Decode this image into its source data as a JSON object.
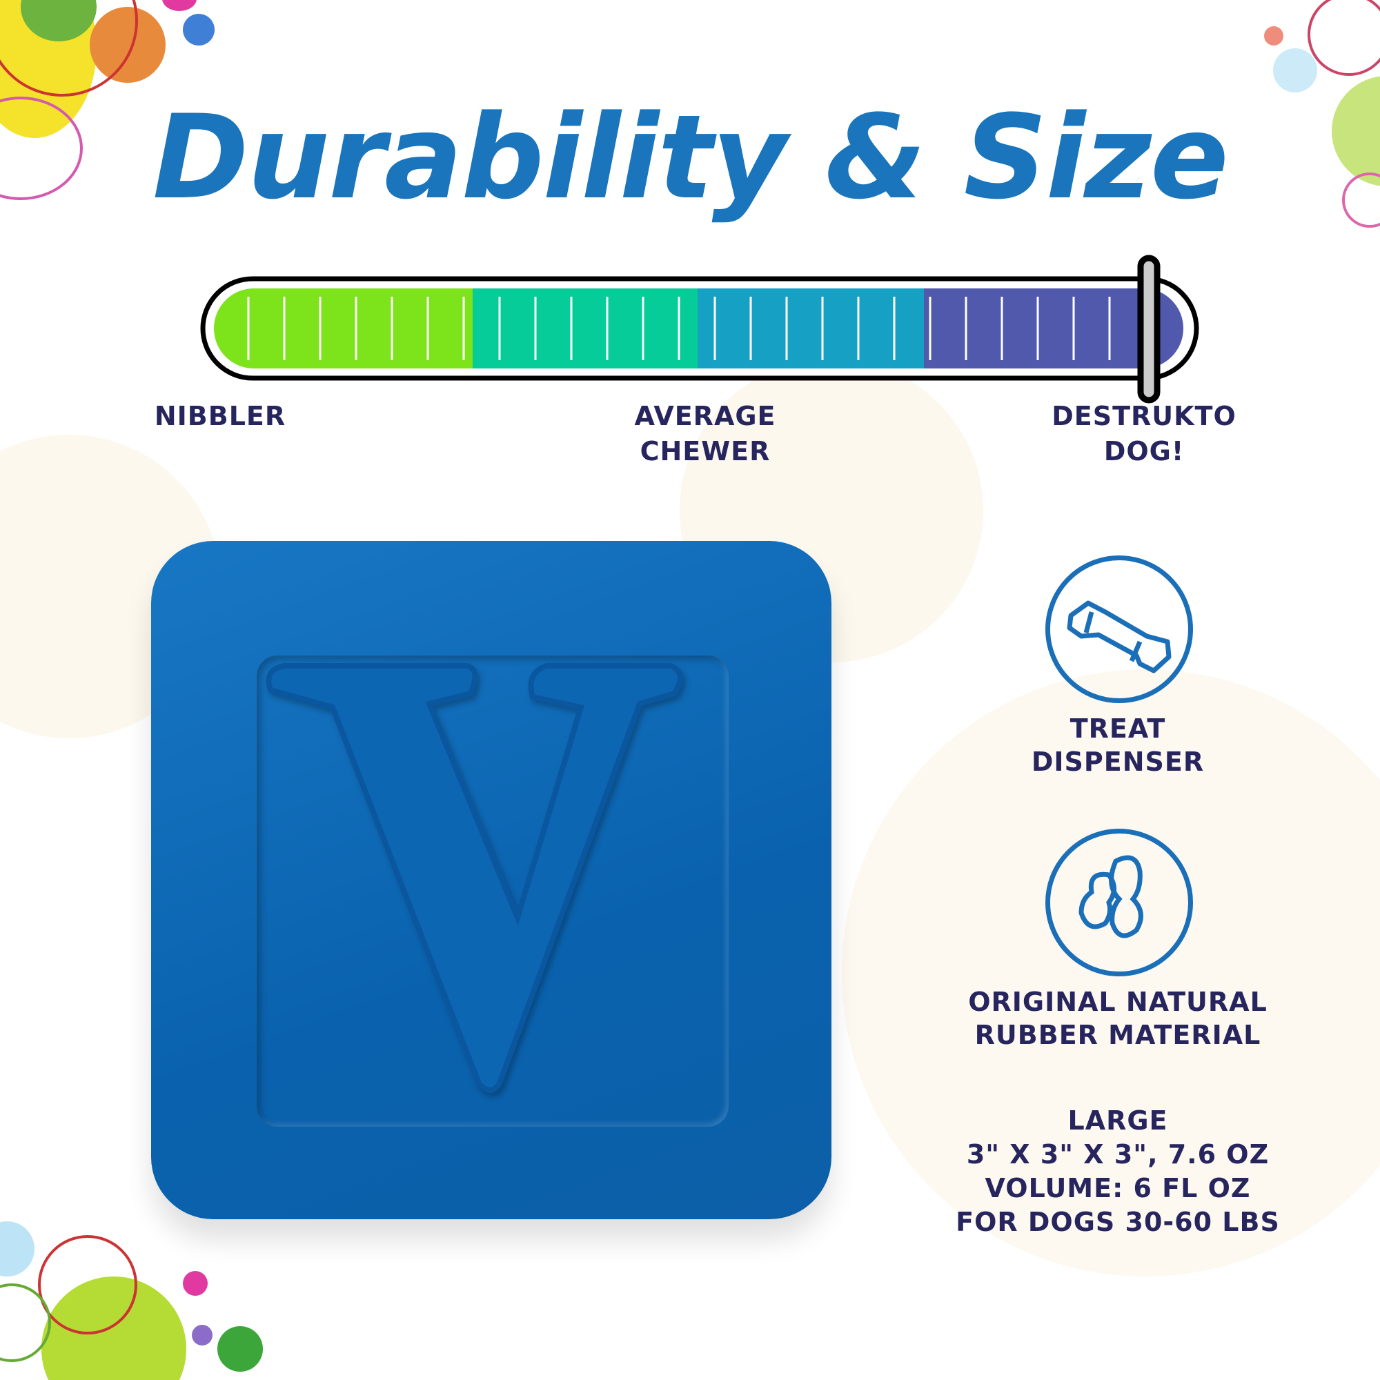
{
  "title": "Durability & Size",
  "durability_scale": {
    "level_percent": 95,
    "segment_colors": [
      "#7de31a",
      "#06cc9a",
      "#16a1c4",
      "#5059ab"
    ],
    "labels": {
      "low": "NIBBLER",
      "mid_line1": "AVERAGE",
      "mid_line2": "CHEWER",
      "high_line1": "DESTRUKTO",
      "high_line2": "DOG!"
    }
  },
  "product": {
    "letter": "V",
    "color": "#0a62ae"
  },
  "features": [
    {
      "icon": "bone-icon",
      "line1": "TREAT",
      "line2": "DISPENSER"
    },
    {
      "icon": "rubber-material-icon",
      "line1": "ORIGINAL NATURAL",
      "line2": "RUBBER MATERIAL"
    }
  ],
  "size": {
    "name": "LARGE",
    "dimensions": "3\" X 3\" X 3\", 7.6 OZ",
    "volume": "VOLUME: 6 FL OZ",
    "dogs": "FOR DOGS 30-60 LBS"
  },
  "colors": {
    "title": "#1a75bc",
    "text": "#27255e",
    "icon": "#1a6fb8"
  }
}
